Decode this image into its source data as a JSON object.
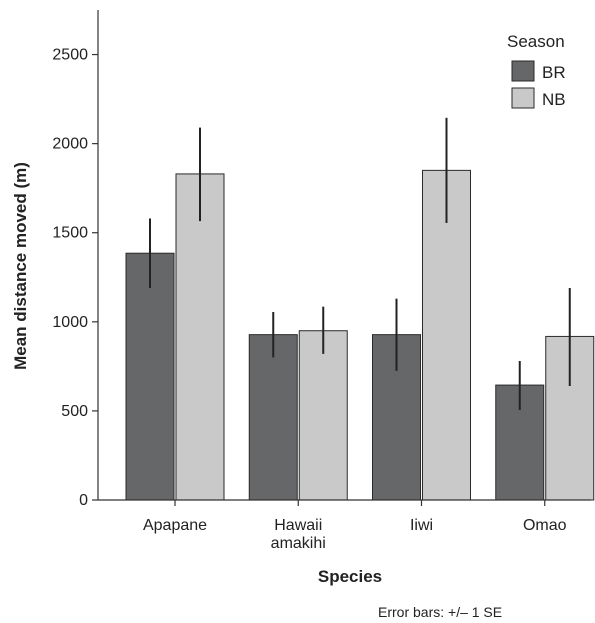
{
  "chart_data": {
    "type": "bar",
    "categories": [
      [
        "Apapane"
      ],
      [
        "Hawaii",
        "amakihi"
      ],
      [
        "Iiwi"
      ],
      [
        "Omao"
      ]
    ],
    "series": [
      {
        "name": "BR",
        "color": "#666769",
        "values": [
          1385,
          928,
          928,
          645
        ],
        "error": [
          [
            1190,
            1580
          ],
          [
            800,
            1055
          ],
          [
            725,
            1130
          ],
          [
            505,
            780
          ]
        ]
      },
      {
        "name": "NB",
        "color": "#c9c9c9",
        "values": [
          1830,
          950,
          1850,
          918
        ],
        "error": [
          [
            1565,
            2090
          ],
          [
            820,
            1085
          ],
          [
            1555,
            2145
          ],
          [
            640,
            1190
          ]
        ]
      }
    ],
    "xlabel": "Species",
    "ylabel": "Mean distance moved (m)",
    "ylim": [
      0,
      2750
    ],
    "yticks": [
      0,
      500,
      1000,
      1500,
      2000,
      2500
    ],
    "grid": false,
    "legend": {
      "title": "Season",
      "placement": "top-right"
    },
    "note": "Error bars: +/– 1 SE"
  }
}
